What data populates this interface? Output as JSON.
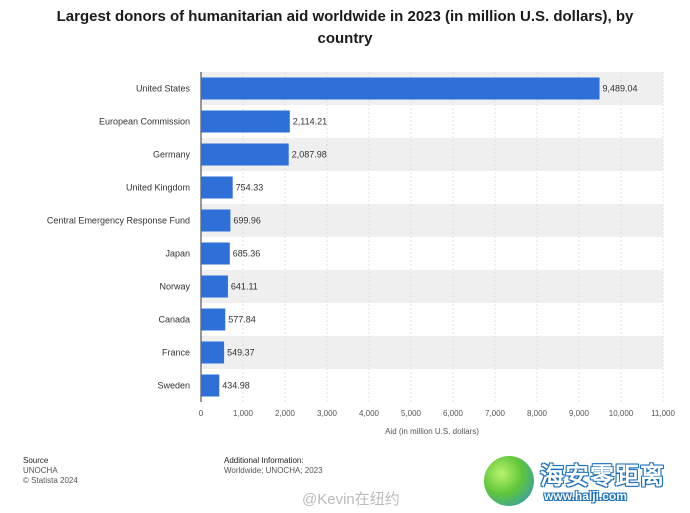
{
  "chart_data": {
    "type": "bar",
    "orientation": "horizontal",
    "title": "Largest donors of humanitarian aid worldwide in 2023 (in million U.S. dollars), by country",
    "categories": [
      "United States",
      "European Commission",
      "Germany",
      "United Kingdom",
      "Central Emergency Response Fund",
      "Japan",
      "Norway",
      "Canada",
      "France",
      "Sweden"
    ],
    "values": [
      9489.04,
      2114.21,
      2087.98,
      754.33,
      699.96,
      685.36,
      641.11,
      577.84,
      549.37,
      434.98
    ],
    "value_labels": [
      "9,489.04",
      "2,114.21",
      "2,087.98",
      "754.33",
      "699.96",
      "685.36",
      "641.11",
      "577.84",
      "549.37",
      "434.98"
    ],
    "xlabel": "Aid (in million U.S. dollars)",
    "ylabel": "",
    "xlim": [
      0,
      11000
    ],
    "ticks": [
      0,
      1000,
      2000,
      3000,
      4000,
      5000,
      6000,
      7000,
      8000,
      9000,
      10000,
      11000
    ],
    "tick_labels": [
      "0",
      "1,000",
      "2,000",
      "3,000",
      "4,000",
      "5,000",
      "6,000",
      "7,000",
      "8,000",
      "9,000",
      "10,000",
      "11,000"
    ],
    "bar_color": "#2e6fd8",
    "band_color": "#efefef",
    "grid": true
  },
  "footer": {
    "source_head": "Source",
    "source_lines": [
      "UNOCHA",
      "© Statista 2024"
    ],
    "info_head": "Additional Information:",
    "info_lines": [
      "Worldwide; UNOCHA; 2023"
    ]
  },
  "watermark": {
    "weibo": "@Kevin在纽约",
    "site_title": "海安零距离",
    "site_url": "www.halji.com"
  }
}
